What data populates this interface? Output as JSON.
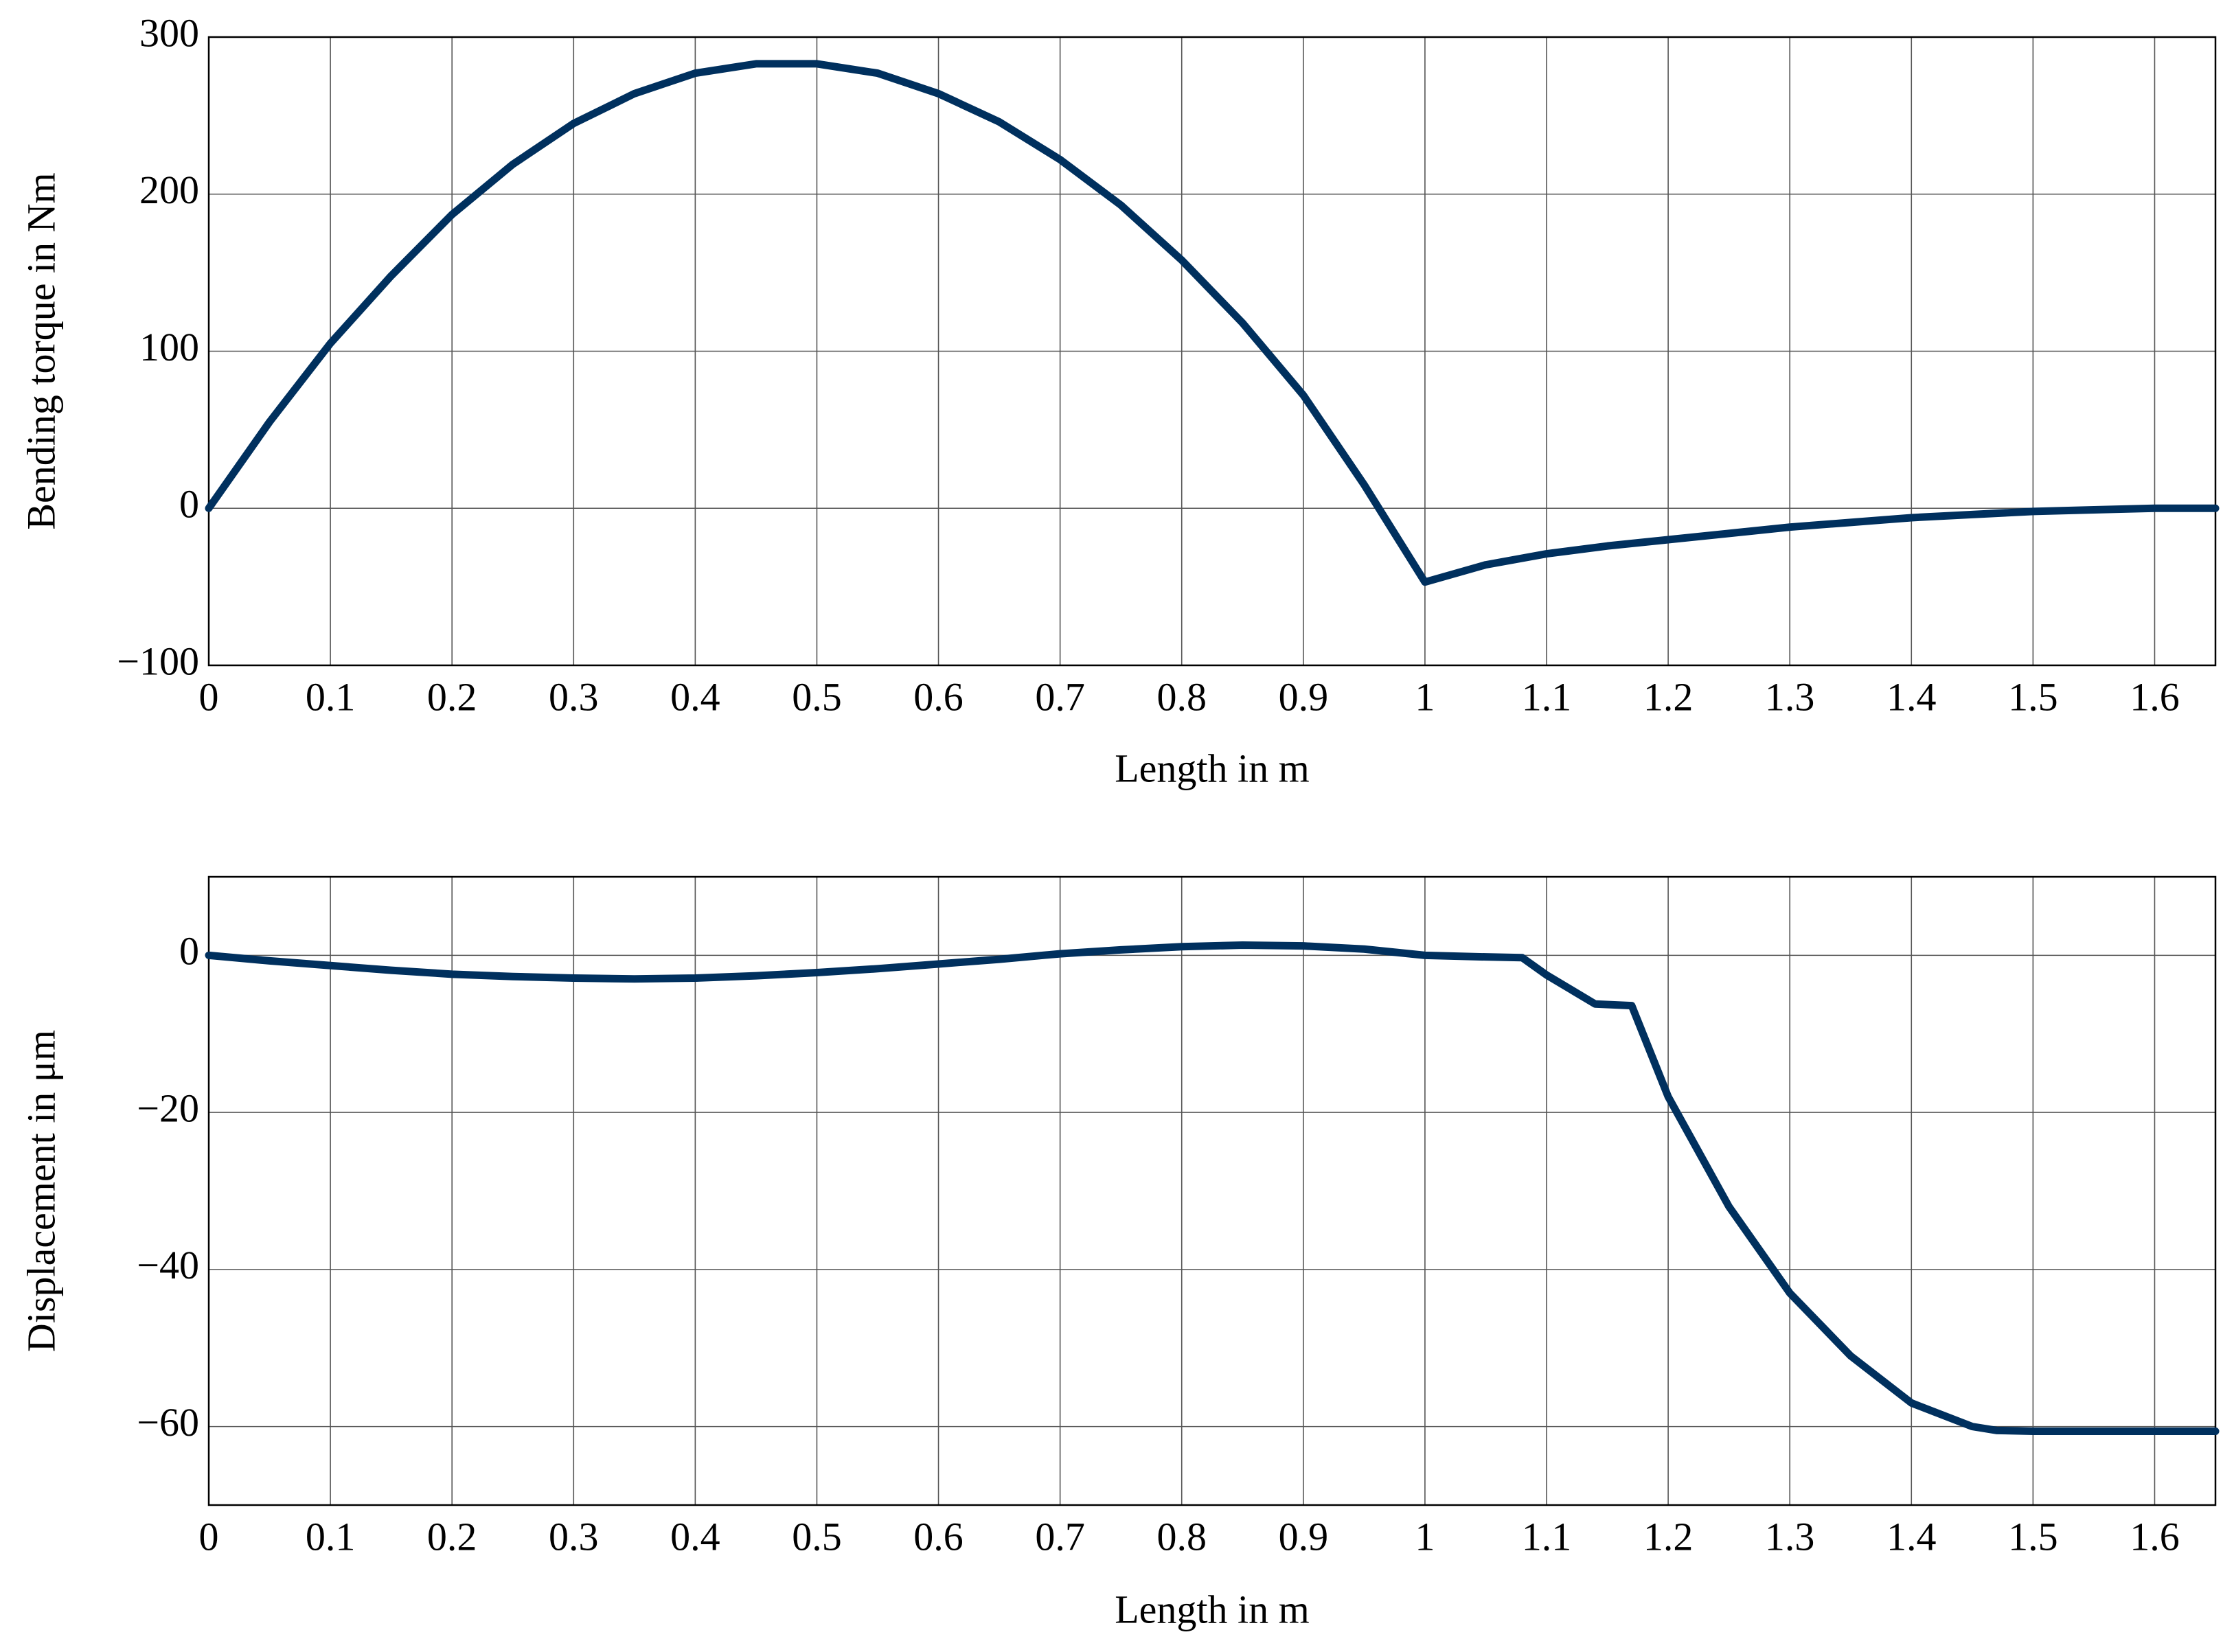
{
  "chart_data": [
    {
      "type": "line",
      "xlabel": "Length in m",
      "ylabel": "Bending torque in Nm",
      "xlim": [
        0,
        1.65
      ],
      "ylim": [
        -100,
        300
      ],
      "xticks": [
        0,
        0.1,
        0.2,
        0.3,
        0.4,
        0.5,
        0.6,
        0.7,
        0.8,
        0.9,
        1,
        1.1,
        1.2,
        1.3,
        1.4,
        1.5,
        1.6
      ],
      "yticks": [
        {
          "value": -100,
          "label": "−100"
        },
        0,
        100,
        200,
        300
      ],
      "grid": true,
      "color": "#00305e",
      "x": [
        0,
        0.05,
        0.1,
        0.15,
        0.2,
        0.25,
        0.3,
        0.35,
        0.4,
        0.45,
        0.5,
        0.55,
        0.6,
        0.65,
        0.7,
        0.75,
        0.8,
        0.85,
        0.9,
        0.95,
        1.0,
        1.05,
        1.1,
        1.15,
        1.2,
        1.25,
        1.3,
        1.35,
        1.4,
        1.45,
        1.5,
        1.55,
        1.6,
        1.65
      ],
      "values": [
        0,
        55,
        105,
        148,
        187,
        219,
        245,
        264,
        277,
        283,
        283,
        277,
        264,
        246,
        222,
        193,
        158,
        118,
        72,
        15,
        -47,
        -36,
        -29,
        -24,
        -20,
        -16,
        -12,
        -9,
        -6,
        -4,
        -2,
        -1,
        0,
        0
      ]
    },
    {
      "type": "line",
      "xlabel": "Length in m",
      "ylabel": "Displacement in μm",
      "xlim": [
        0,
        1.65
      ],
      "ylim": [
        -70,
        10
      ],
      "xticks": [
        0,
        0.1,
        0.2,
        0.3,
        0.4,
        0.5,
        0.6,
        0.7,
        0.8,
        0.9,
        1,
        1.1,
        1.2,
        1.3,
        1.4,
        1.5,
        1.6
      ],
      "yticks": [
        {
          "value": -60,
          "label": "−60"
        },
        {
          "value": -40,
          "label": "−40"
        },
        {
          "value": -20,
          "label": "−20"
        },
        0
      ],
      "grid": true,
      "color": "#00305e",
      "x": [
        0,
        0.05,
        0.1,
        0.15,
        0.2,
        0.25,
        0.3,
        0.35,
        0.4,
        0.45,
        0.5,
        0.55,
        0.6,
        0.65,
        0.7,
        0.75,
        0.8,
        0.85,
        0.9,
        0.95,
        1.0,
        1.05,
        1.08,
        1.1,
        1.14,
        1.17,
        1.2,
        1.25,
        1.3,
        1.35,
        1.4,
        1.45,
        1.47,
        1.5,
        1.6,
        1.65
      ],
      "values": [
        0,
        -0.7,
        -1.3,
        -1.9,
        -2.4,
        -2.7,
        -2.9,
        -3,
        -2.9,
        -2.6,
        -2.2,
        -1.7,
        -1.1,
        -0.5,
        0.2,
        0.7,
        1.1,
        1.3,
        1.2,
        0.8,
        0,
        -0.2,
        -0.3,
        -2.5,
        -6.2,
        -6.4,
        -18,
        -32,
        -43,
        -51,
        -57,
        -60,
        -60.5,
        -60.6,
        -60.6,
        -60.6
      ]
    }
  ]
}
